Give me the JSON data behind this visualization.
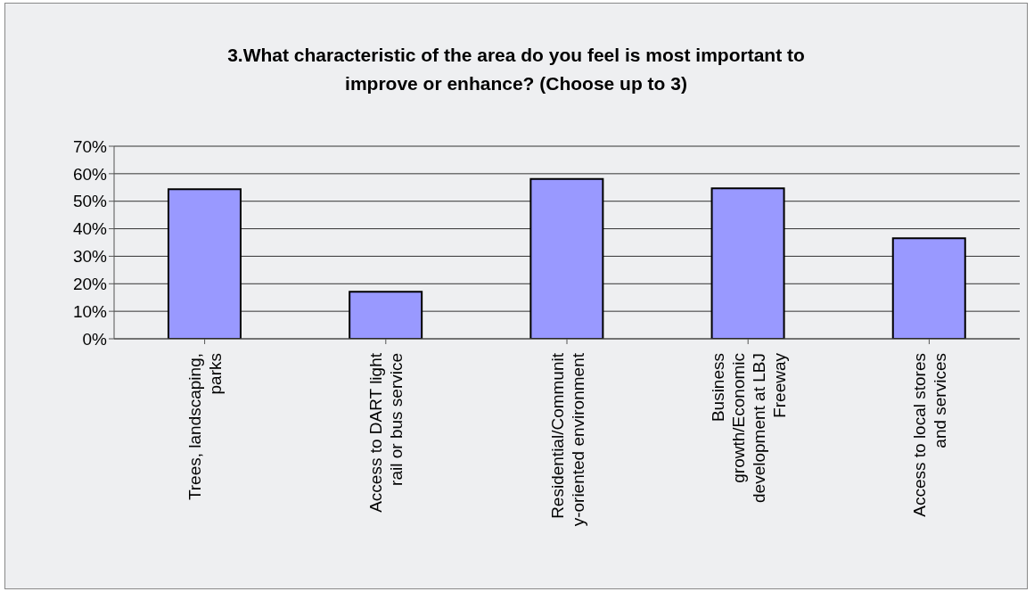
{
  "chart_data": {
    "type": "bar",
    "title": "3.What characteristic of the area do you feel is most important to improve or enhance? (Choose up to 3)",
    "categories": [
      "Trees, landscaping, parks",
      "Access to DART light rail or bus service",
      "Residential/Community-oriented environment",
      "Business growth/Economic development at LBJ Freeway",
      "Access to local stores and services"
    ],
    "values": [
      0.544,
      0.171,
      0.581,
      0.547,
      0.365
    ],
    "color": "#9999ff",
    "ylim": [
      0,
      0.7
    ],
    "yticks": [
      {
        "value": 0,
        "label": "0%"
      },
      {
        "value": 0.1,
        "label": "10%"
      },
      {
        "value": 0.2,
        "label": "20%"
      },
      {
        "value": 0.3,
        "label": "30%"
      },
      {
        "value": 0.4,
        "label": "40%"
      },
      {
        "value": 0.5,
        "label": "50%"
      },
      {
        "value": 0.6,
        "label": "60%"
      },
      {
        "value": 0.7,
        "label": "70%"
      }
    ],
    "grid": "y"
  }
}
